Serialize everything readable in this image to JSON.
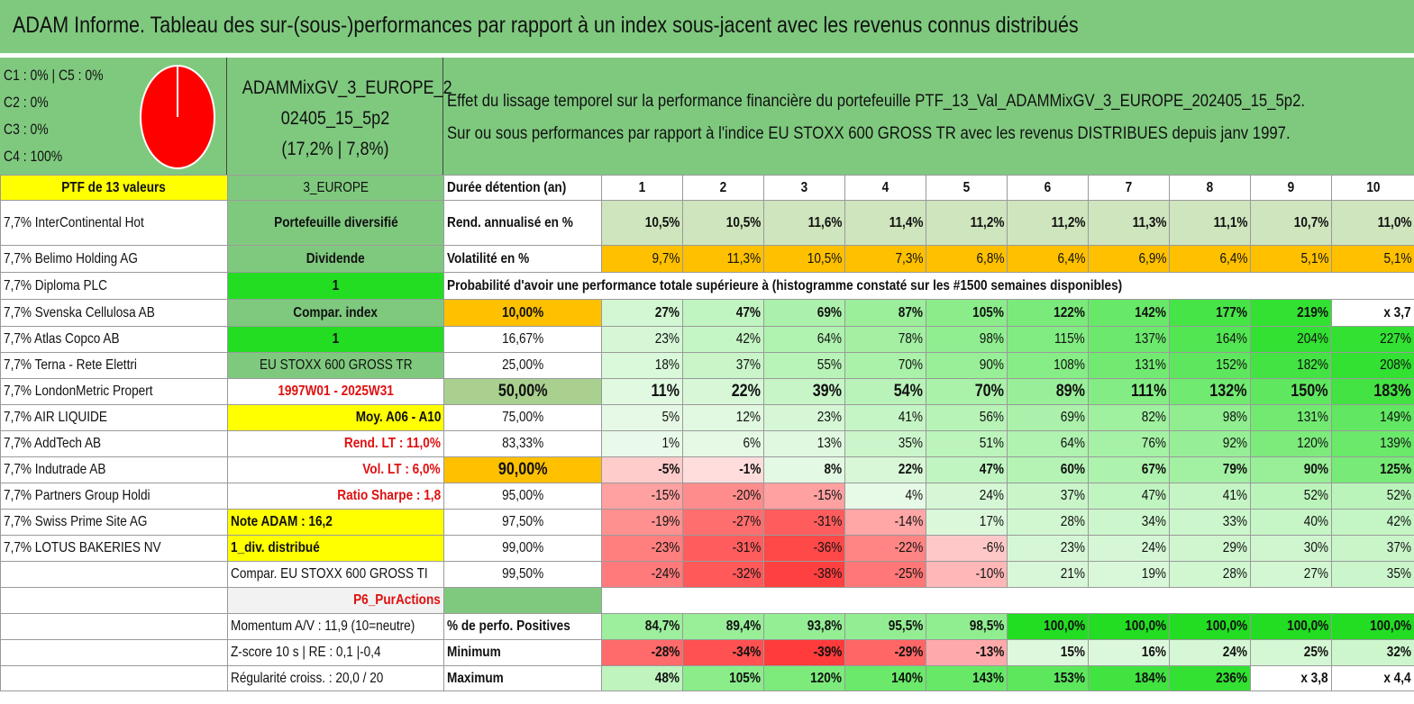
{
  "title": "ADAM Informe. Tableau des sur-(sous-)performances par rapport à un index sous-jacent avec les revenus connus distribués",
  "classes": [
    "C1 : 0% | C5 : 0%",
    "C2 : 0%",
    "C3 : 0%",
    "C4 : 100%"
  ],
  "portfolio": {
    "name_line1": "ADAMMixGV_3_EUROPE_2",
    "name_line2": "02405_15_5p2",
    "name_line3": "(17,2% | 7,8%)"
  },
  "description": {
    "line1": "Effet du lissage temporel sur la performance financière du portefeuille PTF_13_Val_ADAMMixGV_3_EUROPE_202405_15_5p2.",
    "line2": "Sur ou sous performances par rapport à l'indice EU STOXX 600 GROSS TR avec les revenus DISTRIBUES depuis janv 1997."
  },
  "left_col": [
    "PTF de 13 valeurs",
    "7,7% InterContinental Hot",
    "7,7% Belimo Holding AG",
    "7,7% Diploma PLC",
    "7,7% Svenska Cellulosa AB",
    "7,7% Atlas Copco AB",
    "7,7% Terna - Rete Elettri",
    "7,7% LondonMetric Propert",
    "7,7% AIR LIQUIDE",
    "7,7% AddTech AB",
    "7,7% Indutrade AB",
    "7,7% Partners Group Holdi",
    "7,7% Swiss Prime Site AG",
    "7,7% LOTUS BAKERIES NV",
    "",
    "",
    "",
    "",
    ""
  ],
  "mid_col": [
    "3_EUROPE",
    "Portefeuille diversifié",
    "Dividende",
    "1",
    "Compar. index",
    "1",
    "EU STOXX 600 GROSS TR",
    "1997W01 - 2025W31",
    "Moy. A06 - A10",
    "Rend. LT : 11,0%",
    "Vol. LT : 6,0%",
    "Ratio Sharpe : 1,8",
    "Note ADAM : 16,2",
    "1_div. distribué",
    "Compar. EU STOXX 600 GROSS TI",
    "P6_PurActions",
    "Momentum A/V : 11,9 (10=neutre)",
    "Z-score 10 s | RE : 0,1 |-0,4",
    "Régularité croiss. : 20,0 / 20"
  ],
  "label_col": [
    "Durée détention (an)",
    "Rend. annualisé en %",
    "Volatilité en %",
    "",
    "10,00%",
    "16,67%",
    "25,00%",
    "50,00%",
    "75,00%",
    "83,33%",
    "90,00%",
    "95,00%",
    "97,50%",
    "99,00%",
    "99,50%",
    "",
    "% de perfo. Positives",
    "Minimum",
    "Maximum"
  ],
  "probability_title": "Probabilité d'avoir une performance totale supérieure à (histogramme constaté sur les #1500 semaines disponibles)",
  "years": [
    "1",
    "2",
    "3",
    "4",
    "5",
    "6",
    "7",
    "8",
    "9",
    "10"
  ],
  "rows": {
    "rend": [
      "10,5%",
      "10,5%",
      "11,6%",
      "11,4%",
      "11,2%",
      "11,2%",
      "11,3%",
      "11,1%",
      "10,7%",
      "11,0%"
    ],
    "vol": [
      "9,7%",
      "11,3%",
      "10,5%",
      "7,3%",
      "6,8%",
      "6,4%",
      "6,9%",
      "6,4%",
      "5,1%",
      "5,1%"
    ],
    "p10": [
      "27%",
      "47%",
      "69%",
      "87%",
      "105%",
      "122%",
      "142%",
      "177%",
      "219%",
      "x 3,7"
    ],
    "p1667": [
      "23%",
      "42%",
      "64%",
      "78%",
      "98%",
      "115%",
      "137%",
      "164%",
      "204%",
      "227%"
    ],
    "p25": [
      "18%",
      "37%",
      "55%",
      "70%",
      "90%",
      "108%",
      "131%",
      "152%",
      "182%",
      "208%"
    ],
    "p50": [
      "11%",
      "22%",
      "39%",
      "54%",
      "70%",
      "89%",
      "111%",
      "132%",
      "150%",
      "183%"
    ],
    "p75": [
      "5%",
      "12%",
      "23%",
      "41%",
      "56%",
      "69%",
      "82%",
      "98%",
      "131%",
      "149%"
    ],
    "p8333": [
      "1%",
      "6%",
      "13%",
      "35%",
      "51%",
      "64%",
      "76%",
      "92%",
      "120%",
      "139%"
    ],
    "p90": [
      "-5%",
      "-1%",
      "8%",
      "22%",
      "47%",
      "60%",
      "67%",
      "79%",
      "90%",
      "125%"
    ],
    "p95": [
      "-15%",
      "-20%",
      "-15%",
      "4%",
      "24%",
      "37%",
      "47%",
      "41%",
      "52%",
      "52%"
    ],
    "p975": [
      "-19%",
      "-27%",
      "-31%",
      "-14%",
      "17%",
      "28%",
      "34%",
      "33%",
      "40%",
      "42%"
    ],
    "p99": [
      "-23%",
      "-31%",
      "-36%",
      "-22%",
      "-6%",
      "23%",
      "24%",
      "29%",
      "30%",
      "37%"
    ],
    "p995": [
      "-24%",
      "-32%",
      "-38%",
      "-25%",
      "-10%",
      "21%",
      "19%",
      "28%",
      "27%",
      "35%"
    ],
    "pos": [
      "84,7%",
      "89,4%",
      "93,8%",
      "95,5%",
      "98,5%",
      "100,0%",
      "100,0%",
      "100,0%",
      "100,0%",
      "100,0%"
    ],
    "min": [
      "-28%",
      "-34%",
      "-39%",
      "-29%",
      "-13%",
      "15%",
      "16%",
      "24%",
      "25%",
      "32%"
    ],
    "max": [
      "48%",
      "105%",
      "120%",
      "140%",
      "143%",
      "153%",
      "184%",
      "236%",
      "x 3,8",
      "x 4,4"
    ]
  },
  "colors": {
    "header_green": "#7fc97f",
    "yellow": "#ffff00",
    "lime": "#22dd22",
    "orange": "#ffc000",
    "red_text": "#e01010",
    "pie_red": "#ff0000"
  }
}
